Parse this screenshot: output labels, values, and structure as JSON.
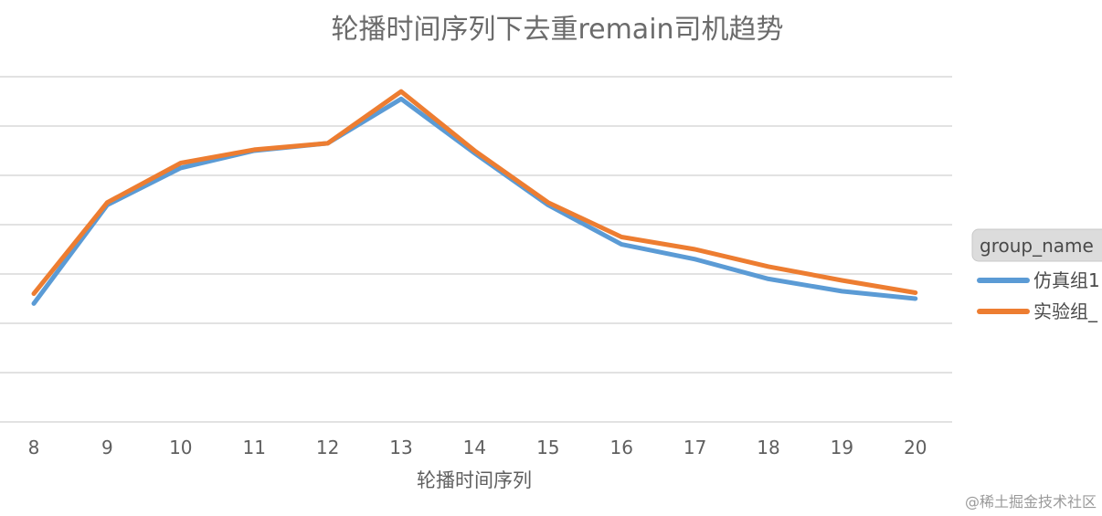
{
  "chart_data": {
    "type": "line",
    "title": "轮播时间序列下去重remain司机趋势",
    "xlabel": "轮播时间序列",
    "ylabel": "",
    "categories": [
      "8",
      "9",
      "10",
      "11",
      "12",
      "13",
      "14",
      "15",
      "16",
      "17",
      "18",
      "19",
      "20"
    ],
    "ylim": [
      0,
      7
    ],
    "grid": true,
    "legend": {
      "title": "group_name",
      "placement": "right"
    },
    "series": [
      {
        "name": "仿真组1",
        "color": "#5b9bd5",
        "values": [
          2.4,
          4.4,
          5.15,
          5.5,
          5.65,
          6.55,
          5.45,
          4.4,
          3.6,
          3.3,
          2.9,
          2.65,
          2.5
        ]
      },
      {
        "name": "实验组_",
        "color": "#ed7d31",
        "values": [
          2.6,
          4.45,
          5.25,
          5.52,
          5.65,
          6.7,
          5.5,
          4.45,
          3.75,
          3.5,
          3.15,
          2.87,
          2.62
        ]
      }
    ]
  },
  "watermark": "@稀土掘金技术社区"
}
